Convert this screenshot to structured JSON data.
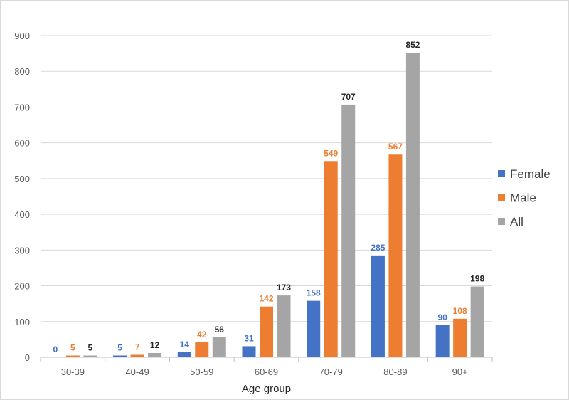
{
  "chart_data": {
    "type": "bar",
    "title": "",
    "xlabel": "Age group",
    "ylabel": "",
    "ylim": [
      0,
      900
    ],
    "yticks": [
      0,
      100,
      200,
      300,
      400,
      500,
      600,
      700,
      800,
      900
    ],
    "grid": true,
    "legend": "right",
    "categories": [
      "30-39",
      "40-49",
      "50-59",
      "60-69",
      "70-79",
      "80-89",
      "90+"
    ],
    "series": [
      {
        "name": "Female",
        "color": "#4472c4",
        "label_color": "#4472c4",
        "values": [
          0,
          5,
          14,
          31,
          158,
          285,
          90
        ]
      },
      {
        "name": "Male",
        "color": "#ed7d31",
        "label_color": "#ed7d31",
        "values": [
          5,
          7,
          42,
          142,
          549,
          567,
          108
        ]
      },
      {
        "name": "All",
        "color": "#a5a5a5",
        "label_color": "#262626",
        "values": [
          5,
          12,
          56,
          173,
          707,
          852,
          198
        ]
      }
    ]
  }
}
